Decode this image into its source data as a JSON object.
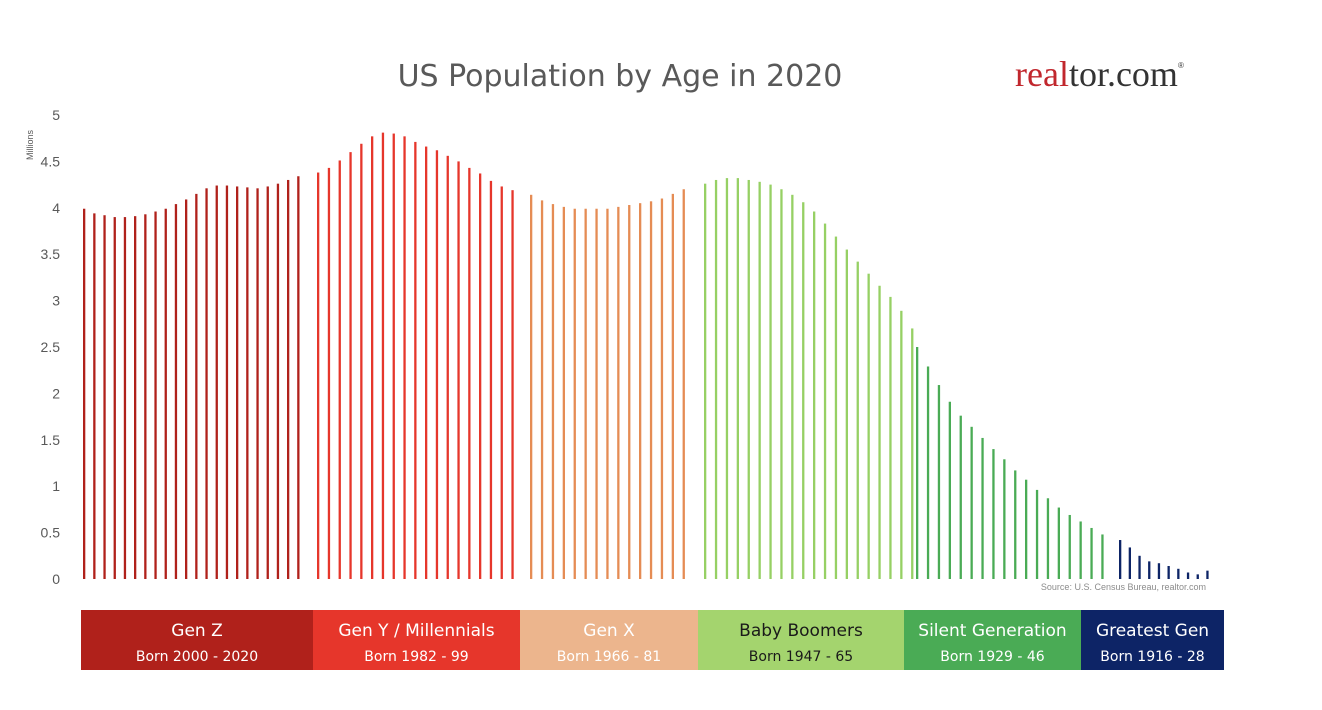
{
  "chart_data": {
    "type": "bar",
    "title": "US Population by Age in 2020",
    "ylabel": "Millions",
    "ylim": [
      0,
      5
    ],
    "yticks": [
      "0",
      "0.5",
      "1",
      "1.5",
      "2",
      "2.5",
      "3",
      "3.5",
      "4",
      "4.5",
      "5"
    ],
    "grid": false,
    "source": "Source: U.S. Census Bureau, realtor.com",
    "series": [
      {
        "generation": "Gen Z",
        "born": "Born 2000 - 2020",
        "color": "#b0211b",
        "values": [
          3.99,
          3.94,
          3.92,
          3.9,
          3.9,
          3.91,
          3.93,
          3.96,
          3.99,
          4.04,
          4.09,
          4.15,
          4.21,
          4.24,
          4.24,
          4.23,
          4.22,
          4.21,
          4.23,
          4.26,
          4.3,
          4.34
        ]
      },
      {
        "generation": "Gen Y / Millennials",
        "born": "Born 1982 - 99",
        "color": "#e6362b",
        "values": [
          4.38,
          4.43,
          4.51,
          4.6,
          4.69,
          4.77,
          4.81,
          4.8,
          4.77,
          4.71,
          4.66,
          4.62,
          4.56,
          4.5,
          4.43,
          4.37,
          4.29,
          4.23,
          4.19
        ]
      },
      {
        "generation": "Gen X",
        "born": "Born 1966 - 81",
        "color": "#e58c54",
        "values": [
          4.14,
          4.08,
          4.04,
          4.01,
          3.99,
          3.99,
          3.99,
          3.99,
          4.01,
          4.03,
          4.05,
          4.07,
          4.1,
          4.15,
          4.2
        ]
      },
      {
        "generation": "Baby Boomers",
        "born": "Born 1947 - 65",
        "color": "#96d064",
        "values": [
          4.26,
          4.3,
          4.32,
          4.32,
          4.3,
          4.28,
          4.25,
          4.2,
          4.14,
          4.06,
          3.96,
          3.83,
          3.69,
          3.55,
          3.42,
          3.29,
          3.16,
          3.04,
          2.89,
          2.7
        ]
      },
      {
        "generation": "Silent Generation",
        "born": "Born 1929 - 46",
        "color": "#4aab55",
        "values": [
          2.5,
          2.29,
          2.09,
          1.91,
          1.76,
          1.64,
          1.52,
          1.4,
          1.29,
          1.17,
          1.07,
          0.96,
          0.87,
          0.77,
          0.69,
          0.62,
          0.55,
          0.48
        ]
      },
      {
        "generation": "Greatest Gen",
        "born": "Born 1916 - 28",
        "color": "#0d2466",
        "values": [
          0.42,
          0.34,
          0.25,
          0.19,
          0.17,
          0.14,
          0.11,
          0.07,
          0.05,
          0.09
        ]
      }
    ]
  },
  "band": {
    "segments": [
      {
        "name": "Gen Z",
        "born": "Born 2000 - 2020",
        "bg": "#b0211b",
        "fg": "#ffffff"
      },
      {
        "name": "Gen Y / Millennials",
        "born": "Born 1982 - 99",
        "bg": "#e6362b",
        "fg": "#ffffff"
      },
      {
        "name": "Gen X",
        "born": "Born 1966 - 81",
        "bg": "#ecb58d",
        "fg": "#ffffff"
      },
      {
        "name": "Baby Boomers",
        "born": "Born 1947 - 65",
        "bg": "#a4d46e",
        "fg": "#1a1a1a"
      },
      {
        "name": "Silent Generation",
        "born": "Born 1929 - 46",
        "bg": "#4aab55",
        "fg": "#ffffff"
      },
      {
        "name": "Greatest Gen",
        "born": "Born 1916 - 28",
        "bg": "#0d2466",
        "fg": "#ffffff"
      }
    ]
  },
  "logo": {
    "part1": "real",
    "part2": "tor.com",
    "mark": "®"
  }
}
